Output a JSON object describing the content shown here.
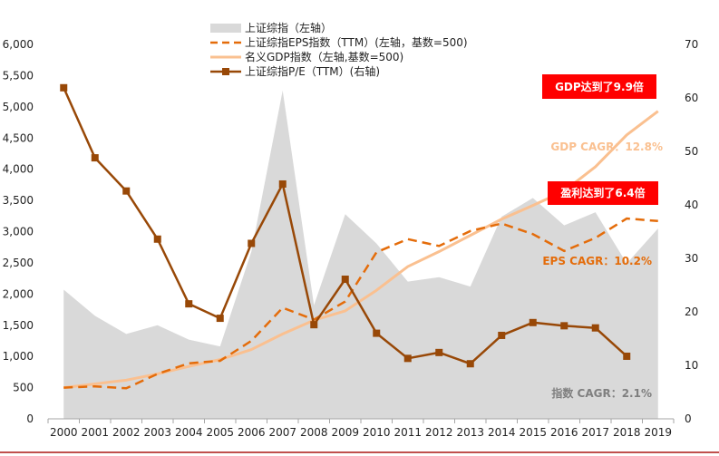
{
  "chart_data": {
    "type": "area+line",
    "categories": [
      "2000",
      "2001",
      "2002",
      "2003",
      "2004",
      "2005",
      "2006",
      "2007",
      "2008",
      "2009",
      "2010",
      "2011",
      "2012",
      "2013",
      "2014",
      "2015",
      "2016",
      "2017",
      "2018",
      "2019"
    ],
    "left_axis": {
      "ylim": [
        0,
        6000
      ],
      "ticks": [
        "0",
        "500",
        "1,000",
        "1,500",
        "2,000",
        "2,500",
        "3,000",
        "3,500",
        "4,000",
        "4,500",
        "5,000",
        "5,500",
        "6,000"
      ]
    },
    "right_axis": {
      "ylim": [
        0,
        70
      ],
      "ticks": [
        "0",
        "10",
        "20",
        "30",
        "40",
        "50",
        "60",
        "70"
      ]
    },
    "series": [
      {
        "name": "上证综指（左轴）",
        "kind": "area",
        "axis": "left",
        "color": "#d9d9d9",
        "values": [
          2070,
          1650,
          1360,
          1500,
          1270,
          1160,
          2680,
          5260,
          1820,
          3280,
          2810,
          2200,
          2270,
          2120,
          3240,
          3540,
          3100,
          3310,
          2490,
          3050
        ]
      },
      {
        "name": "上证综指EPS指数（TTM）(左轴，基数=500)",
        "kind": "dashed",
        "axis": "left",
        "color": "#e46c0a",
        "values": [
          500,
          520,
          490,
          720,
          890,
          930,
          1250,
          1780,
          1590,
          1880,
          2670,
          2880,
          2770,
          3010,
          3130,
          2960,
          2690,
          2900,
          3210,
          3170
        ]
      },
      {
        "name": "名义GDP指数（左轴,基数=500)",
        "kind": "line",
        "axis": "left",
        "color": "#fac090",
        "values": [
          500,
          560,
          620,
          720,
          840,
          950,
          1110,
          1360,
          1580,
          1730,
          2060,
          2440,
          2680,
          2940,
          3200,
          3420,
          3650,
          4040,
          4550,
          4930
        ]
      },
      {
        "name": "上证综指P/E（TTM）(右轴)",
        "kind": "line-marker",
        "axis": "right",
        "color": "#984807",
        "values": [
          61.9,
          48.8,
          42.6,
          33.6,
          21.5,
          18.8,
          32.8,
          43.9,
          17.6,
          26.1,
          16.0,
          11.3,
          12.4,
          10.3,
          15.6,
          18.0,
          17.4,
          17.0,
          11.7,
          null
        ]
      }
    ],
    "annotations": {
      "gdp_multiple": "GDP达到了9.9倍",
      "profit_multiple": "盈利达到了6.4倍",
      "gdp_cagr": "GDP CAGR：12.8%",
      "eps_cagr": "EPS CAGR：10.2%",
      "index_cagr": "指数 CAGR：2.1%"
    },
    "legend_position": "top-left",
    "grid": false
  },
  "colors": {
    "badge": "#ff0000",
    "axis": "#a6a6a6",
    "bottom_rule": "#c0504d"
  }
}
